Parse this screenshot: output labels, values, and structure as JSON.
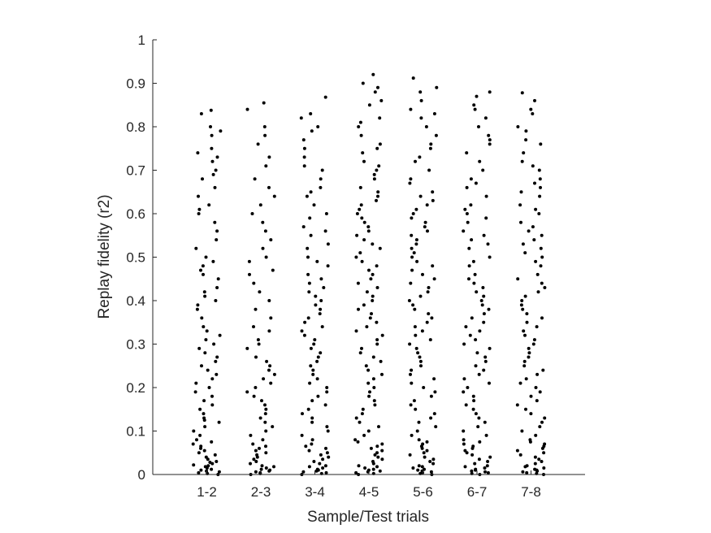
{
  "chart_data": {
    "type": "scatter",
    "xlabel": "Sample/Test trials",
    "ylabel": "Replay fidelity (r2)",
    "categories": [
      "1-2",
      "2-3",
      "3-4",
      "4-5",
      "5-6",
      "6-7",
      "7-8"
    ],
    "ylim": [
      0,
      1
    ],
    "yticks": [
      "0",
      "0.1",
      "0.2",
      "0.3",
      "0.4",
      "0.5",
      "0.6",
      "0.7",
      "0.8",
      "0.9",
      "1"
    ],
    "grid": false,
    "legend": "none",
    "marker_color": "#000000",
    "series": [
      {
        "category": "1-2",
        "values": [
          0.838,
          0.83,
          0.8,
          0.79,
          0.78,
          0.75,
          0.74,
          0.73,
          0.72,
          0.7,
          0.69,
          0.68,
          0.66,
          0.64,
          0.62,
          0.61,
          0.6,
          0.58,
          0.56,
          0.54,
          0.52,
          0.5,
          0.49,
          0.48,
          0.47,
          0.46,
          0.45,
          0.43,
          0.42,
          0.41,
          0.4,
          0.39,
          0.38,
          0.36,
          0.34,
          0.33,
          0.32,
          0.31,
          0.3,
          0.29,
          0.28,
          0.27,
          0.26,
          0.25,
          0.24,
          0.23,
          0.22,
          0.21,
          0.2,
          0.19,
          0.18,
          0.17,
          0.16,
          0.15,
          0.14,
          0.13,
          0.125,
          0.12,
          0.11,
          0.1,
          0.09,
          0.08,
          0.075,
          0.07,
          0.065,
          0.06,
          0.055,
          0.05,
          0.045,
          0.04,
          0.035,
          0.03,
          0.028,
          0.025,
          0.022,
          0.02,
          0.018,
          0.015,
          0.012,
          0.01,
          0.008,
          0.006,
          0.004,
          0.002,
          0.0
        ]
      },
      {
        "category": "2-3",
        "values": [
          0.855,
          0.84,
          0.8,
          0.78,
          0.76,
          0.73,
          0.71,
          0.68,
          0.66,
          0.64,
          0.62,
          0.6,
          0.58,
          0.56,
          0.54,
          0.52,
          0.5,
          0.49,
          0.47,
          0.46,
          0.44,
          0.42,
          0.4,
          0.38,
          0.36,
          0.34,
          0.33,
          0.31,
          0.3,
          0.29,
          0.27,
          0.26,
          0.25,
          0.24,
          0.23,
          0.22,
          0.21,
          0.2,
          0.19,
          0.18,
          0.17,
          0.16,
          0.15,
          0.14,
          0.13,
          0.12,
          0.11,
          0.1,
          0.09,
          0.08,
          0.07,
          0.065,
          0.06,
          0.055,
          0.05,
          0.045,
          0.04,
          0.035,
          0.03,
          0.025,
          0.02,
          0.018,
          0.015,
          0.012,
          0.01,
          0.008,
          0.006,
          0.004,
          0.002,
          0.0
        ]
      },
      {
        "category": "3-4",
        "values": [
          0.868,
          0.83,
          0.82,
          0.8,
          0.79,
          0.77,
          0.75,
          0.73,
          0.71,
          0.7,
          0.68,
          0.66,
          0.65,
          0.64,
          0.62,
          0.6,
          0.59,
          0.57,
          0.56,
          0.55,
          0.53,
          0.52,
          0.5,
          0.49,
          0.48,
          0.46,
          0.45,
          0.44,
          0.43,
          0.42,
          0.41,
          0.4,
          0.39,
          0.38,
          0.37,
          0.36,
          0.35,
          0.34,
          0.33,
          0.32,
          0.31,
          0.3,
          0.29,
          0.28,
          0.27,
          0.26,
          0.25,
          0.24,
          0.23,
          0.22,
          0.21,
          0.2,
          0.19,
          0.18,
          0.17,
          0.16,
          0.15,
          0.14,
          0.13,
          0.12,
          0.11,
          0.1,
          0.09,
          0.08,
          0.07,
          0.065,
          0.06,
          0.055,
          0.05,
          0.045,
          0.04,
          0.035,
          0.03,
          0.025,
          0.02,
          0.018,
          0.015,
          0.012,
          0.01,
          0.008,
          0.006,
          0.004,
          0.002,
          0.0
        ]
      },
      {
        "category": "4-5",
        "values": [
          0.92,
          0.9,
          0.89,
          0.88,
          0.86,
          0.85,
          0.82,
          0.81,
          0.8,
          0.78,
          0.76,
          0.75,
          0.74,
          0.72,
          0.71,
          0.7,
          0.69,
          0.68,
          0.66,
          0.65,
          0.64,
          0.63,
          0.62,
          0.61,
          0.6,
          0.59,
          0.58,
          0.57,
          0.56,
          0.55,
          0.54,
          0.53,
          0.52,
          0.51,
          0.5,
          0.49,
          0.48,
          0.47,
          0.46,
          0.45,
          0.44,
          0.43,
          0.42,
          0.41,
          0.4,
          0.39,
          0.38,
          0.37,
          0.36,
          0.35,
          0.34,
          0.33,
          0.32,
          0.31,
          0.3,
          0.29,
          0.28,
          0.27,
          0.26,
          0.25,
          0.24,
          0.23,
          0.22,
          0.21,
          0.2,
          0.19,
          0.18,
          0.17,
          0.16,
          0.15,
          0.14,
          0.13,
          0.12,
          0.11,
          0.1,
          0.09,
          0.08,
          0.075,
          0.07,
          0.065,
          0.06,
          0.055,
          0.05,
          0.045,
          0.04,
          0.035,
          0.03,
          0.025,
          0.02,
          0.018,
          0.015,
          0.012,
          0.01,
          0.008,
          0.006,
          0.004,
          0.002,
          0.0
        ]
      },
      {
        "category": "5-6",
        "values": [
          0.912,
          0.89,
          0.88,
          0.86,
          0.84,
          0.83,
          0.82,
          0.8,
          0.78,
          0.76,
          0.75,
          0.73,
          0.72,
          0.7,
          0.68,
          0.67,
          0.65,
          0.64,
          0.63,
          0.62,
          0.61,
          0.6,
          0.59,
          0.58,
          0.57,
          0.56,
          0.55,
          0.54,
          0.53,
          0.52,
          0.51,
          0.5,
          0.49,
          0.48,
          0.47,
          0.46,
          0.45,
          0.44,
          0.43,
          0.42,
          0.41,
          0.4,
          0.39,
          0.38,
          0.37,
          0.36,
          0.35,
          0.34,
          0.33,
          0.32,
          0.31,
          0.3,
          0.29,
          0.28,
          0.27,
          0.26,
          0.25,
          0.24,
          0.23,
          0.22,
          0.21,
          0.2,
          0.19,
          0.18,
          0.17,
          0.16,
          0.15,
          0.14,
          0.13,
          0.12,
          0.11,
          0.1,
          0.09,
          0.08,
          0.075,
          0.07,
          0.065,
          0.06,
          0.055,
          0.05,
          0.045,
          0.04,
          0.035,
          0.03,
          0.025,
          0.02,
          0.018,
          0.015,
          0.012,
          0.01,
          0.008,
          0.006,
          0.004,
          0.002,
          0.0
        ]
      },
      {
        "category": "6-7",
        "values": [
          0.88,
          0.87,
          0.85,
          0.84,
          0.82,
          0.8,
          0.78,
          0.77,
          0.76,
          0.74,
          0.72,
          0.7,
          0.68,
          0.67,
          0.66,
          0.64,
          0.62,
          0.61,
          0.6,
          0.59,
          0.58,
          0.56,
          0.55,
          0.54,
          0.53,
          0.52,
          0.5,
          0.49,
          0.48,
          0.46,
          0.45,
          0.44,
          0.43,
          0.42,
          0.41,
          0.4,
          0.39,
          0.38,
          0.37,
          0.36,
          0.35,
          0.34,
          0.33,
          0.32,
          0.31,
          0.3,
          0.29,
          0.28,
          0.27,
          0.26,
          0.25,
          0.24,
          0.23,
          0.22,
          0.21,
          0.2,
          0.19,
          0.18,
          0.17,
          0.16,
          0.15,
          0.14,
          0.13,
          0.12,
          0.11,
          0.1,
          0.09,
          0.08,
          0.075,
          0.07,
          0.065,
          0.06,
          0.055,
          0.05,
          0.045,
          0.04,
          0.035,
          0.03,
          0.025,
          0.02,
          0.018,
          0.015,
          0.012,
          0.01,
          0.008,
          0.006,
          0.004,
          0.002,
          0.0
        ]
      },
      {
        "category": "7-8",
        "values": [
          0.878,
          0.86,
          0.84,
          0.83,
          0.8,
          0.79,
          0.77,
          0.76,
          0.74,
          0.72,
          0.71,
          0.7,
          0.68,
          0.67,
          0.66,
          0.65,
          0.64,
          0.62,
          0.61,
          0.6,
          0.58,
          0.57,
          0.56,
          0.55,
          0.54,
          0.53,
          0.52,
          0.51,
          0.5,
          0.49,
          0.48,
          0.46,
          0.45,
          0.44,
          0.43,
          0.42,
          0.41,
          0.4,
          0.39,
          0.38,
          0.37,
          0.36,
          0.35,
          0.34,
          0.33,
          0.32,
          0.31,
          0.3,
          0.29,
          0.28,
          0.27,
          0.26,
          0.25,
          0.24,
          0.23,
          0.22,
          0.21,
          0.2,
          0.19,
          0.18,
          0.17,
          0.16,
          0.15,
          0.14,
          0.13,
          0.12,
          0.11,
          0.1,
          0.09,
          0.08,
          0.075,
          0.07,
          0.065,
          0.06,
          0.055,
          0.05,
          0.045,
          0.04,
          0.035,
          0.03,
          0.025,
          0.02,
          0.018,
          0.015,
          0.012,
          0.01,
          0.008,
          0.006,
          0.004,
          0.002,
          0.0
        ]
      }
    ]
  }
}
